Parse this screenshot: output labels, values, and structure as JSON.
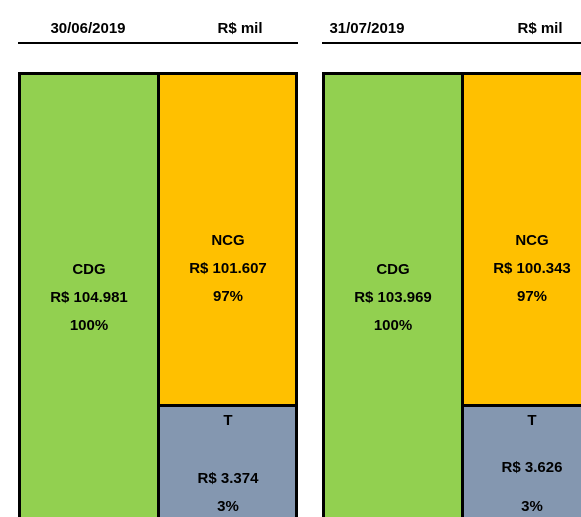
{
  "panels": [
    {
      "date": "30/06/2019",
      "unit": "R$ mil",
      "cdg": {
        "label": "CDG",
        "value": "R$ 104.981",
        "pct": "100%"
      },
      "ncg": {
        "label": "NCG",
        "value": "R$ 101.607",
        "pct": "97%"
      },
      "t": {
        "label": "T",
        "value": "R$ 3.374",
        "pct": "3%"
      }
    },
    {
      "date": "31/07/2019",
      "unit": "R$ mil",
      "cdg": {
        "label": "CDG",
        "value": "R$ 103.969",
        "pct": "100%"
      },
      "ncg": {
        "label": "NCG",
        "value": "R$ 100.343",
        "pct": "97%"
      },
      "t": {
        "label": "T",
        "value": "R$ 3.626",
        "pct": "3%"
      }
    }
  ]
}
